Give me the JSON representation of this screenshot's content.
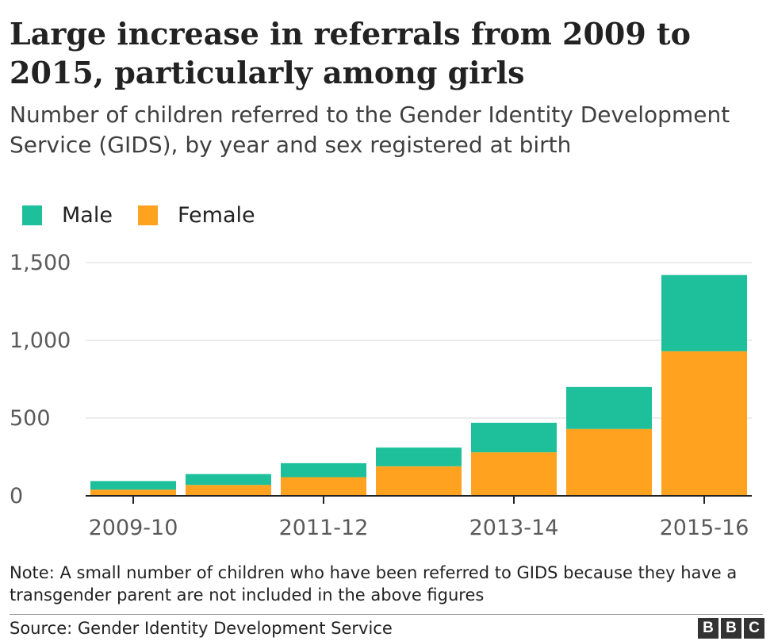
{
  "title": "Large increase in referrals from 2009 to 2015, particularly among girls",
  "subtitle": "Number of children referred to the Gender Identity Development Service (GIDS), by year and sex registered at birth",
  "note": "Note: A small number of children who have been referred to GIDS because they have a transgender parent are not included in the above figures",
  "source": "Source: Gender Identity Development Service",
  "logo": {
    "letters": [
      "B",
      "B",
      "C"
    ]
  },
  "colors": {
    "male": "#1dc09a",
    "female": "#ffa21f",
    "grid": "#d9d9d9",
    "axis": "#222222",
    "tick_text": "#5a5a5a"
  },
  "chart_data": {
    "type": "bar",
    "stacked": true,
    "categories": [
      "2009-10",
      "2010-11",
      "2011-12",
      "2012-13",
      "2013-14",
      "2014-15",
      "2015-16"
    ],
    "x_tick_labels": [
      "2009-10",
      "2011-12",
      "2013-14",
      "2015-16"
    ],
    "series": [
      {
        "name": "Female",
        "color": "#ffa21f",
        "values": [
          40,
          70,
          120,
          190,
          280,
          430,
          930
        ]
      },
      {
        "name": "Male",
        "color": "#1dc09a",
        "values": [
          55,
          70,
          90,
          120,
          190,
          270,
          490
        ]
      }
    ],
    "y_ticks": [
      0,
      500,
      1000,
      1500
    ],
    "y_tick_labels": [
      "0",
      "500",
      "1,000",
      "1,500"
    ],
    "ylim": [
      0,
      1500
    ],
    "grid": true,
    "legend": "top-left",
    "xlabel": "",
    "ylabel": ""
  }
}
